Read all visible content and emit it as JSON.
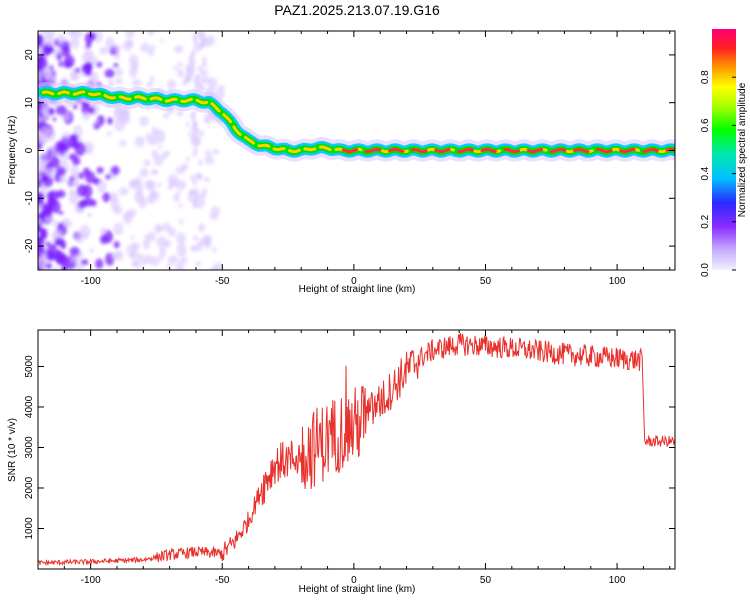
{
  "title": "PAZ1.2025.213.07.19.G16",
  "colors": {
    "snr_line": "#e8302c",
    "ridge_core": "#ff2a3a",
    "ridge_mid": "#00e000",
    "ridge_outer": "#00c8ff",
    "noise": "#7a1cff",
    "noise_light": "#d8c4ff"
  },
  "chart_data": [
    {
      "type": "heatmap",
      "name": "spectrogram",
      "xlabel": "Height of straight line (km)",
      "ylabel": "Frequency (Hz)",
      "xlim": [
        -120,
        122
      ],
      "ylim": [
        -25,
        25
      ],
      "xticks": [
        -100,
        -50,
        0,
        50,
        100
      ],
      "yticks": [
        -20,
        -10,
        0,
        10,
        20
      ],
      "ridge": {
        "x": [
          -118,
          -100,
          -90,
          -80,
          -70,
          -60,
          -55,
          -50,
          -45,
          -40,
          -35,
          -30,
          -25,
          -20,
          -15,
          -10,
          -5,
          0,
          20,
          50,
          80,
          100,
          122
        ],
        "y": [
          12,
          12,
          11,
          11,
          10.5,
          10.5,
          10,
          8,
          4.5,
          2,
          1,
          0.5,
          0,
          0,
          0.5,
          0.5,
          0,
          0,
          0,
          0,
          0,
          0,
          0
        ]
      }
    },
    {
      "type": "colorbar",
      "name": "colorbar",
      "label": "Normalized spectral amplitude",
      "range": [
        0,
        1
      ],
      "ticks": [
        "0.0",
        "0.2",
        "0.4",
        "0.6",
        "0.8"
      ]
    },
    {
      "type": "line",
      "name": "snr",
      "xlabel": "Height of straight line (km)",
      "ylabel": "SNR (10 * v/v)",
      "xlim": [
        -120,
        122
      ],
      "ylim": [
        0,
        5900
      ],
      "xticks": [
        -100,
        -50,
        0,
        50,
        100
      ],
      "yticks": [
        1000,
        2000,
        3000,
        4000,
        5000
      ],
      "series": [
        {
          "x": [
            -120,
            -100,
            -80,
            -70,
            -60,
            -50,
            -45,
            -40,
            -35,
            -30,
            -25,
            -20,
            -15,
            -10,
            -5,
            0,
            5,
            10,
            15,
            20,
            25,
            30,
            40,
            50,
            60,
            80,
            100,
            109.5,
            110.5,
            122
          ],
          "values": [
            150,
            180,
            230,
            350,
            420,
            380,
            700,
            1200,
            2000,
            2600,
            2700,
            2800,
            3000,
            3200,
            3400,
            3500,
            3800,
            4100,
            4500,
            4900,
            5200,
            5400,
            5550,
            5500,
            5450,
            5300,
            5200,
            5150,
            3150,
            3150
          ]
        }
      ]
    }
  ]
}
